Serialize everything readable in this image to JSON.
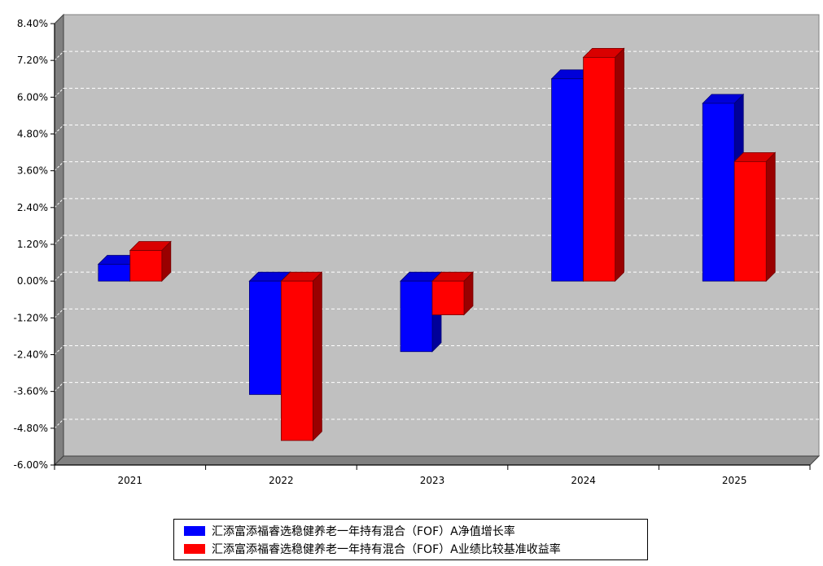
{
  "chart_data": {
    "type": "bar",
    "categories": [
      "2021",
      "2022",
      "2023",
      "2024",
      "2025"
    ],
    "series": [
      {
        "name": "汇添富添福睿选稳健养老一年持有混合（FOF）A净值增长率",
        "values": [
          0.55,
          -3.7,
          -2.3,
          6.6,
          5.8
        ],
        "color": "#0000FF"
      },
      {
        "name": "汇添富添福睿选稳健养老一年持有混合（FOF）A业绩比较基准收益率",
        "values": [
          1.0,
          -5.2,
          -1.1,
          7.3,
          3.9
        ],
        "color": "#FF0000"
      }
    ],
    "yticks": [
      "8.40%",
      "7.20%",
      "6.00%",
      "4.80%",
      "3.60%",
      "2.40%",
      "1.20%",
      "0.00%",
      "-1.20%",
      "-2.40%",
      "-3.60%",
      "-4.80%",
      "-6.00%"
    ],
    "ylim": [
      -6.0,
      8.4
    ],
    "grid": true,
    "legend_position": "bottom",
    "plot_background": "#C0C0C0"
  }
}
